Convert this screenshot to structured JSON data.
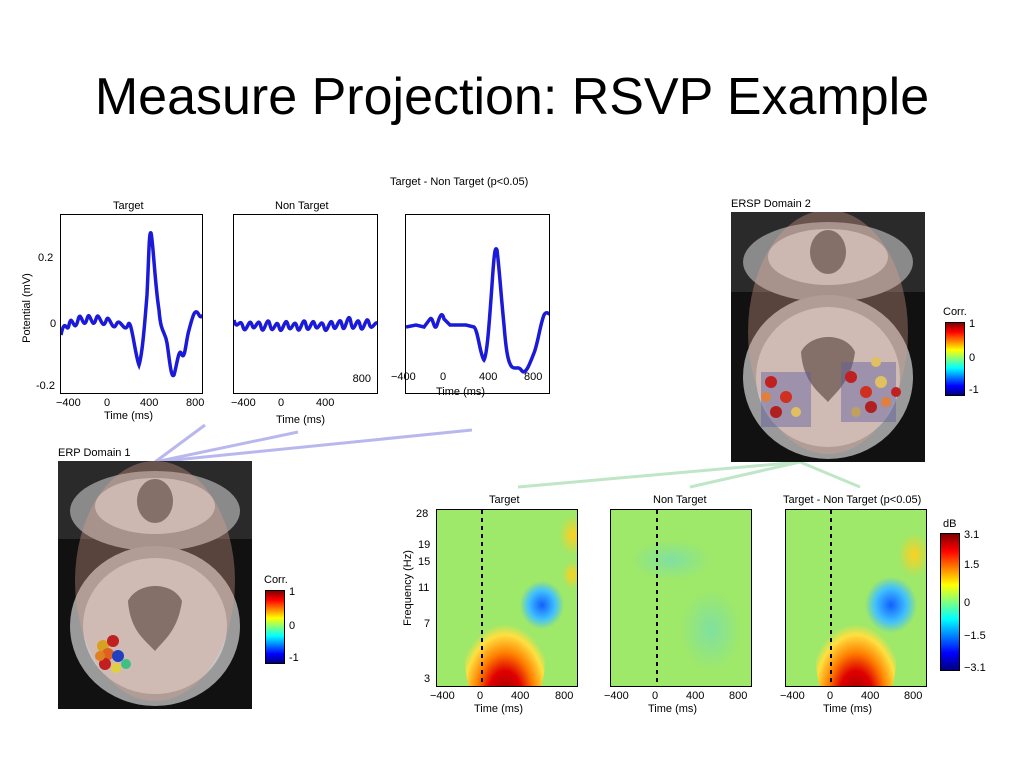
{
  "slide": {
    "title": "Measure Projection: RSVP Example"
  },
  "erp": {
    "heading": "Target - Non Target (p<0.05)",
    "panel_titles": [
      "Target",
      "Non Target",
      ""
    ],
    "ylabel": "Potential (mV)",
    "xlabel": "Time (ms)",
    "yticks": [
      "0.2",
      "0",
      "-0.2"
    ],
    "xticks": [
      "−400",
      "0",
      "400",
      "800"
    ],
    "xticks_p2": [
      "−400",
      "0",
      "400"
    ],
    "p2_corner": "800",
    "xticks_p3": [
      "−400",
      "0",
      "400",
      "800"
    ],
    "line_color": "#1a1ad8"
  },
  "erp_domain": {
    "title": "ERP Domain 1",
    "cbar_label": "Corr.",
    "cbar_ticks": [
      "1",
      "0",
      "-1"
    ]
  },
  "ersp_domain": {
    "title": "ERSP Domain 2",
    "cbar_label": "Corr.",
    "cbar_ticks": [
      "1",
      "0",
      "-1"
    ]
  },
  "ersp": {
    "panel_titles": [
      "Target",
      "Non Target",
      "Target - Non Target (p<0.05)"
    ],
    "ylabel": "Frequency (Hz)",
    "xlabel": "Time (ms)",
    "yticks": [
      "28",
      "19",
      "15",
      "11",
      "7",
      "3"
    ],
    "xticks": [
      "−400",
      "0",
      "400",
      "800"
    ],
    "cbar_unit": "dB",
    "cbar_ticks": [
      "3.1",
      "1.5",
      "0",
      "−1.5",
      "−3.1"
    ]
  }
}
